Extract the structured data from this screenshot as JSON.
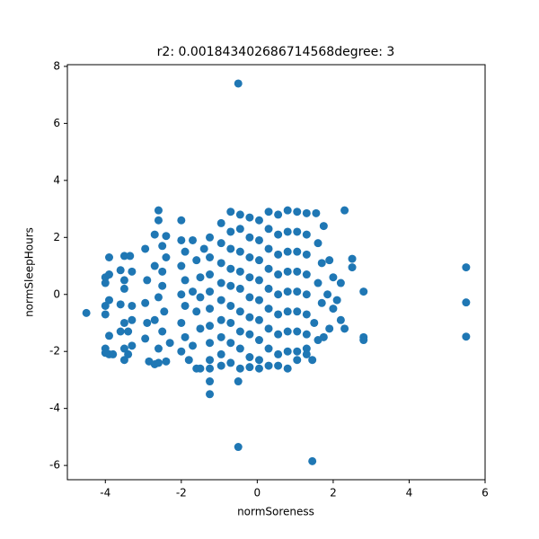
{
  "chart_data": {
    "type": "scatter",
    "title": "r2: 0.001843402686714568degree: 3",
    "x_label": "normSoreness",
    "y_label": "normSleepHours",
    "color": "#1f77b4",
    "xlim": [
      -5,
      6
    ],
    "ylim": [
      -6.5,
      8.06
    ],
    "xticks": [
      -4,
      -2,
      0,
      2,
      4,
      6
    ],
    "yticks": [
      -6,
      -4,
      -2,
      0,
      2,
      4,
      6,
      8
    ],
    "x": [
      -0.5,
      -0.5,
      1.45,
      5.5,
      5.5,
      5.5,
      -4.5,
      2.3,
      2.8,
      2.8,
      2.8,
      2.5,
      2.5,
      -1.25,
      -1.25,
      -0.5,
      -4,
      -3.9,
      -4,
      -3.9,
      -4,
      -4,
      -3.9,
      -4,
      -3.9,
      -4,
      -3.8,
      -3.9,
      -3.6,
      -3.5,
      -3.5,
      -3.35,
      -3.3,
      -3.5,
      -3.6,
      -3.3,
      -3.5,
      -3.3,
      -3.5,
      -3.5,
      -3.4,
      -3.3,
      -3.6,
      -3.4,
      -2.95,
      -2.9,
      -2.95,
      -2.9,
      -2.95,
      -2.85,
      -2.7,
      -2.6,
      -2.6,
      -2.6,
      -2.7,
      -2.5,
      -2.4,
      -2.7,
      -2.5,
      -2.6,
      -2.45,
      -2.7,
      -2.5,
      -2.6,
      -2.4,
      -2.4,
      -2.3,
      -2.5,
      -2.0,
      -2.0,
      -1.9,
      -2.0,
      -1.9,
      -2.0,
      -1.9,
      -2.0,
      -1.9,
      -2.0,
      -1.8,
      -1.7,
      -1.6,
      -1.5,
      -1.7,
      -1.6,
      -1.5,
      -1.7,
      -1.6,
      -1.5,
      -1.5,
      -1.4,
      -1.25,
      -1.25,
      -1.25,
      -1.25,
      -1.25,
      -1.25,
      -1.25,
      -1.25,
      -1.25,
      -0.95,
      -0.95,
      -0.95,
      -0.95,
      -0.95,
      -0.95,
      -0.95,
      -0.95,
      -0.95,
      -0.7,
      -0.7,
      -0.7,
      -0.7,
      -0.7,
      -0.7,
      -0.7,
      -0.7,
      -0.7,
      -0.45,
      -0.45,
      -0.45,
      -0.45,
      -0.45,
      -0.45,
      -0.45,
      -0.45,
      -0.45,
      -0.2,
      -0.2,
      -0.2,
      -0.2,
      -0.2,
      -0.2,
      -0.2,
      -0.2,
      -0.2,
      0.05,
      0.05,
      0.05,
      0.05,
      0.05,
      0.05,
      0.05,
      0.05,
      0.05,
      0.3,
      0.3,
      0.3,
      0.3,
      0.3,
      0.3,
      0.3,
      0.3,
      0.3,
      0.55,
      0.55,
      0.55,
      0.55,
      0.55,
      0.55,
      0.55,
      0.55,
      0.55,
      0.8,
      0.8,
      0.8,
      0.8,
      0.8,
      0.8,
      0.8,
      0.8,
      0.8,
      1.05,
      1.05,
      1.05,
      1.05,
      1.05,
      1.05,
      1.05,
      1.05,
      1.05,
      1.3,
      1.3,
      1.3,
      1.3,
      1.3,
      1.3,
      1.3,
      1.3,
      1.3,
      1.55,
      1.6,
      1.7,
      1.6,
      1.7,
      1.5,
      1.6,
      1.45,
      1.9,
      2.0,
      1.85,
      2.0,
      1.9,
      2.1,
      2.2,
      2.3,
      2.2,
      1.75,
      1.75
    ],
    "values": [
      7.4,
      -5.35,
      -5.85,
      0.95,
      -0.28,
      -1.48,
      -0.65,
      2.95,
      -1.6,
      -1.5,
      0.1,
      1.25,
      0.95,
      -3.5,
      -3.05,
      -3.05,
      0.6,
      0.7,
      0.4,
      1.3,
      -0.4,
      -0.7,
      -0.2,
      -1.9,
      -2.1,
      -2.05,
      -2.1,
      -1.45,
      0.85,
      0.5,
      1.35,
      1.35,
      0.8,
      0.2,
      -0.35,
      -0.4,
      -1.0,
      -0.9,
      -1.9,
      -2.3,
      -2.1,
      -1.8,
      -1.3,
      -1.3,
      1.6,
      0.5,
      -0.3,
      -1.0,
      -1.55,
      -2.35,
      -2.45,
      -2.4,
      2.95,
      2.6,
      2.1,
      1.7,
      1.3,
      1.0,
      0.3,
      -0.1,
      -0.6,
      -0.9,
      -1.3,
      -1.9,
      -2.35,
      2.05,
      -1.7,
      0.8,
      2.6,
      1.9,
      1.5,
      1.0,
      0.5,
      0.0,
      -0.4,
      -1.0,
      -1.5,
      -2.0,
      -2.3,
      -1.8,
      -2.6,
      -2.6,
      1.9,
      1.2,
      0.6,
      0.1,
      -0.6,
      -1.2,
      -0.1,
      1.6,
      2.0,
      1.3,
      0.7,
      0.1,
      -0.5,
      -1.1,
      -1.7,
      -2.3,
      -2.6,
      2.5,
      1.8,
      1.1,
      0.4,
      -0.2,
      -0.9,
      -1.5,
      -2.1,
      -2.5,
      2.9,
      2.2,
      1.6,
      0.9,
      0.3,
      -0.4,
      -1.0,
      -1.7,
      -2.4,
      2.8,
      2.3,
      1.5,
      0.8,
      0.2,
      -0.6,
      -1.3,
      -1.9,
      -2.6,
      2.7,
      2.0,
      1.3,
      0.6,
      -0.1,
      -0.8,
      -1.4,
      -2.2,
      -2.55,
      2.6,
      1.9,
      1.2,
      0.5,
      -0.2,
      -0.9,
      -1.6,
      -2.3,
      -2.6,
      2.9,
      2.3,
      1.6,
      0.9,
      0.2,
      -0.5,
      -1.2,
      -1.9,
      -2.5,
      2.8,
      2.1,
      1.4,
      0.7,
      0.0,
      -0.7,
      -1.4,
      -2.1,
      -2.5,
      2.95,
      2.2,
      1.5,
      0.8,
      0.1,
      -0.6,
      -1.3,
      -2.0,
      -2.6,
      2.9,
      2.2,
      1.5,
      0.8,
      0.1,
      -0.6,
      -1.3,
      -2.0,
      -2.3,
      2.85,
      2.1,
      1.4,
      0.7,
      0.0,
      -0.7,
      -1.4,
      -1.9,
      -2.1,
      2.85,
      1.8,
      1.1,
      0.4,
      -0.3,
      -1.0,
      -1.6,
      -2.3,
      1.2,
      0.6,
      0.0,
      -0.5,
      -1.2,
      -0.2,
      0.4,
      -1.2,
      -0.9,
      -1.5,
      2.4
    ]
  }
}
